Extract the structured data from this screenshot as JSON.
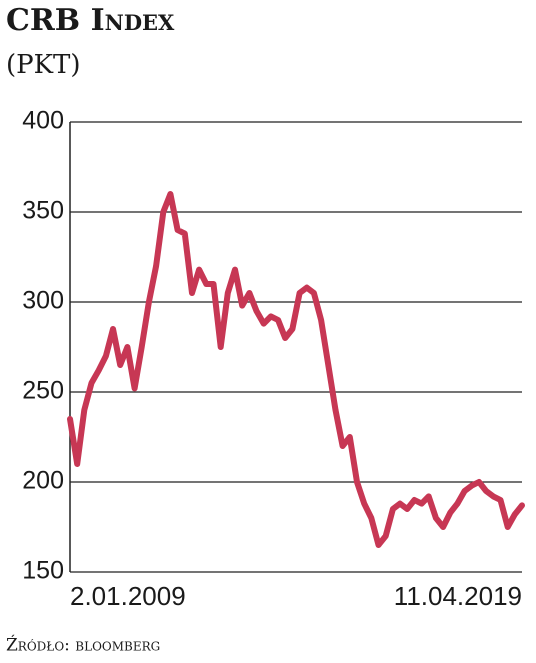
{
  "chart_data": {
    "type": "line",
    "title": "CRB Index",
    "subtitle": "(PKT)",
    "source": "Źródło: bloomberg",
    "categories": [
      "2.01.2009",
      null,
      null,
      null,
      null,
      null,
      null,
      null,
      null,
      null,
      null,
      null,
      null,
      null,
      null,
      null,
      null,
      null,
      null,
      null,
      null,
      null,
      null,
      null,
      null,
      null,
      null,
      null,
      null,
      null,
      null,
      null,
      null,
      null,
      null,
      null,
      null,
      null,
      null,
      null,
      null,
      null,
      null,
      null,
      null,
      null,
      null,
      null,
      null,
      null,
      null,
      null,
      null,
      null,
      null,
      null,
      null,
      null,
      null,
      null,
      null,
      null,
      null,
      "11.04.2019"
    ],
    "series": [
      {
        "color": "#c73754",
        "values": [
          235,
          210,
          240,
          255,
          262,
          270,
          285,
          265,
          275,
          252,
          275,
          300,
          320,
          350,
          360,
          340,
          338,
          305,
          318,
          310,
          310,
          275,
          305,
          318,
          298,
          305,
          295,
          288,
          292,
          290,
          280,
          285,
          305,
          308,
          305,
          290,
          265,
          240,
          220,
          225,
          200,
          188,
          180,
          165,
          170,
          185,
          188,
          185,
          190,
          188,
          192,
          180,
          175,
          183,
          188,
          195,
          198,
          200,
          195,
          192,
          190,
          175,
          182,
          187
        ]
      }
    ],
    "ylim": [
      150,
      400
    ],
    "yticks": [
      150,
      200,
      250,
      300,
      350,
      400
    ],
    "grid": true
  }
}
